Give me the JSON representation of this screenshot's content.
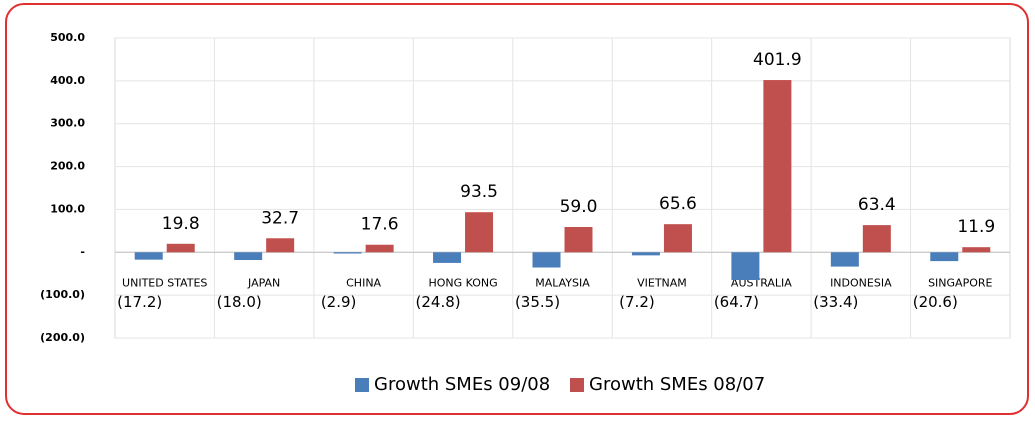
{
  "chart_data": {
    "type": "bar",
    "categories": [
      "UNITED STATES",
      "JAPAN",
      "CHINA",
      "HONG KONG",
      "MALAYSIA",
      "VIETNAM",
      "AUSTRALIA",
      "INDONESIA",
      "SINGAPORE"
    ],
    "series": [
      {
        "name": "Growth SMEs 09/08",
        "color": "#4a7ebb",
        "values": [
          -17.2,
          -18.0,
          -2.9,
          -24.8,
          -35.5,
          -7.2,
          -64.7,
          -33.4,
          -20.6
        ],
        "value_labels": [
          "(17.2)",
          "(18.0)",
          "(2.9)",
          "(24.8)",
          "(35.5)",
          "(7.2)",
          "(64.7)",
          "(33.4)",
          "(20.6)"
        ]
      },
      {
        "name": "Growth SMEs 08/07",
        "color": "#c0504d",
        "values": [
          19.8,
          32.7,
          17.6,
          93.5,
          59.0,
          65.6,
          401.9,
          63.4,
          11.9
        ],
        "value_labels": [
          "19.8",
          "32.7",
          "17.6",
          "93.5",
          "59.0",
          "65.6",
          "401.9",
          "63.4",
          "11.9"
        ]
      }
    ],
    "ylim": [
      -200,
      500
    ],
    "yticks": [
      {
        "value": -200,
        "label": "(200.0)"
      },
      {
        "value": -100,
        "label": "(100.0)"
      },
      {
        "value": 0,
        "label": "-"
      },
      {
        "value": 100,
        "label": "100.0"
      },
      {
        "value": 200,
        "label": "200.0"
      },
      {
        "value": 300,
        "label": "300.0"
      },
      {
        "value": 400,
        "label": "400.0"
      },
      {
        "value": 500,
        "label": "500.0"
      }
    ],
    "grid": true,
    "legend": "bottom"
  }
}
